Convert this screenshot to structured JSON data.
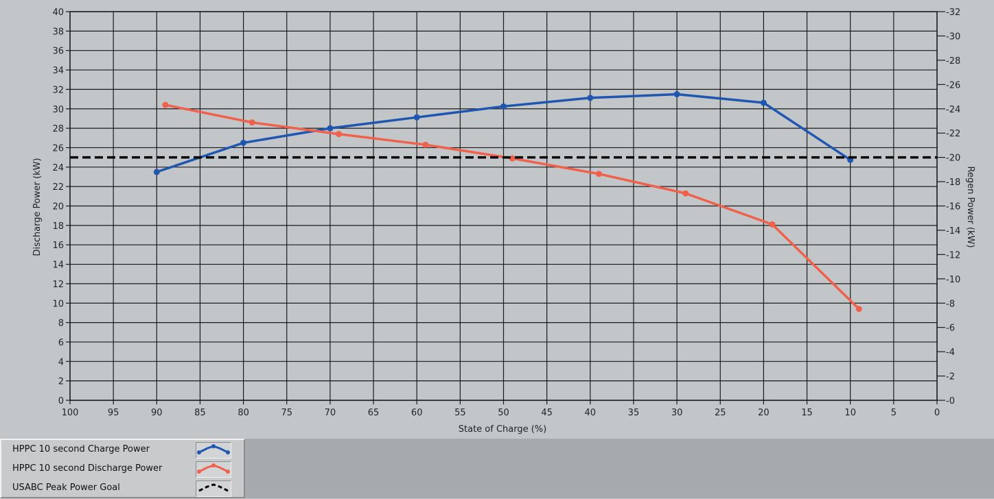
{
  "chart_data": {
    "type": "line",
    "xlabel": "State of Charge (%)",
    "ylabel_left": "Discharge Power (kW)",
    "ylabel_right": "Regen Power (kW)",
    "xlim": [
      100,
      0
    ],
    "ylim_left": [
      0,
      40
    ],
    "ylim_right": [
      0,
      -32
    ],
    "x_ticks": [
      100,
      95,
      90,
      85,
      80,
      75,
      70,
      65,
      60,
      55,
      50,
      45,
      40,
      35,
      30,
      25,
      20,
      15,
      10,
      5,
      0
    ],
    "y_left_ticks": [
      0,
      2,
      4,
      6,
      8,
      10,
      12,
      14,
      16,
      18,
      20,
      22,
      24,
      26,
      28,
      30,
      32,
      34,
      36,
      38,
      40
    ],
    "y_right_ticks": [
      "-0",
      "-2",
      "-4",
      "-6",
      "-8",
      "-10",
      "-12",
      "-14",
      "-16",
      "-18",
      "-20",
      "-22",
      "-24",
      "-26",
      "-28",
      "-30",
      "-32"
    ],
    "grid": true,
    "legend_position": "bottom-left",
    "series": [
      {
        "name": "HPPC 10 second Charge Power",
        "axis": "right",
        "color": "#1f57b0",
        "x": [
          90,
          80,
          70,
          60,
          50,
          40,
          30,
          20,
          10
        ],
        "y": [
          -18.8,
          -21.2,
          -22.4,
          -23.3,
          -24.2,
          -24.9,
          -25.2,
          -24.5,
          -19.8
        ]
      },
      {
        "name": "HPPC 10 second Discharge Power",
        "axis": "left",
        "color": "#f0604a",
        "x": [
          89,
          79,
          69,
          59,
          49,
          39,
          29,
          19,
          9
        ],
        "y": [
          30.4,
          28.6,
          27.4,
          26.3,
          24.9,
          23.3,
          21.3,
          18.1,
          9.4
        ]
      },
      {
        "name": "USABC Peak Power Goal",
        "axis": "left",
        "color": "#000000",
        "dashed": true,
        "x": [
          100,
          0
        ],
        "y": [
          25,
          25
        ]
      }
    ]
  },
  "legend": {
    "items": [
      {
        "label": "HPPC 10 second Charge Power",
        "color": "#1f57b0",
        "dashed": false
      },
      {
        "label": "HPPC 10 second Discharge Power",
        "color": "#f0604a",
        "dashed": false
      },
      {
        "label": "USABC Peak Power Goal",
        "color": "#000000",
        "dashed": true
      }
    ]
  },
  "colors": {
    "plot_background": "#c3c6c9",
    "grid": "#1a1a1a"
  }
}
